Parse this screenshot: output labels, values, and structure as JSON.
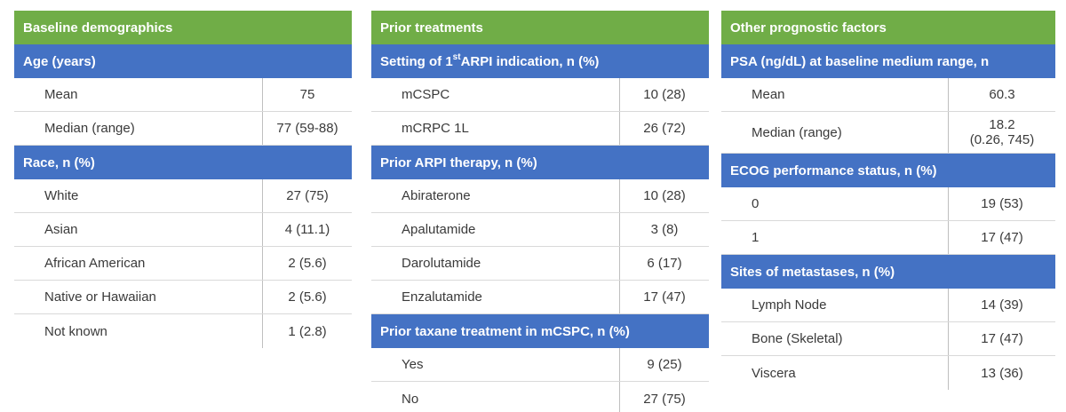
{
  "panels": [
    {
      "title": "Baseline demographics",
      "groups": [
        {
          "heading": "Age (years)",
          "rows": [
            {
              "label": "Mean",
              "value": "75"
            },
            {
              "label": "Median (range)",
              "value": "77 (59-88)"
            }
          ]
        },
        {
          "heading": "Race, n (%)",
          "rows": [
            {
              "label": "White",
              "value": "27 (75)"
            },
            {
              "label": "Asian",
              "value": "4 (11.1)"
            },
            {
              "label": "African American",
              "value": "2 (5.6)"
            },
            {
              "label": "Native or Hawaiian",
              "value": "2 (5.6)"
            },
            {
              "label": "Not known",
              "value": "1 (2.8)"
            }
          ]
        }
      ]
    },
    {
      "title": "Prior treatments",
      "groups": [
        {
          "heading_pre": "Setting of 1",
          "heading_sup": "st",
          "heading_post": " ARPI indication, n (%)",
          "rows": [
            {
              "label": "mCSPC",
              "value": "10 (28)"
            },
            {
              "label": "mCRPC 1L",
              "value": "26 (72)"
            }
          ]
        },
        {
          "heading": "Prior ARPI therapy, n (%)",
          "rows": [
            {
              "label": "Abiraterone",
              "value": "10 (28)"
            },
            {
              "label": "Apalutamide",
              "value": "3 (8)"
            },
            {
              "label": "Darolutamide",
              "value": "6 (17)"
            },
            {
              "label": "Enzalutamide",
              "value": "17 (47)"
            }
          ]
        },
        {
          "heading": "Prior taxane treatment in mCSPC, n (%)",
          "rows": [
            {
              "label": "Yes",
              "value": "9 (25)"
            },
            {
              "label": "No",
              "value": "27 (75)"
            }
          ]
        }
      ]
    },
    {
      "title": "Other prognostic factors",
      "groups": [
        {
          "heading": "PSA (ng/dL) at baseline medium range, n",
          "rows": [
            {
              "label": "Mean",
              "value": "60.3"
            },
            {
              "label": "Median (range)",
              "value": "18.2\n(0.26, 745)"
            }
          ]
        },
        {
          "heading": "ECOG performance status, n (%)",
          "rows": [
            {
              "label": "0",
              "value": "19 (53)"
            },
            {
              "label": "1",
              "value": "17 (47)"
            }
          ]
        },
        {
          "heading": "Sites of metastases, n (%)",
          "rows": [
            {
              "label": "Lymph Node",
              "value": "14 (39)"
            },
            {
              "label": "Bone (Skeletal)",
              "value": "17 (47)"
            },
            {
              "label": "Viscera",
              "value": "13 (36)"
            }
          ]
        }
      ]
    }
  ]
}
